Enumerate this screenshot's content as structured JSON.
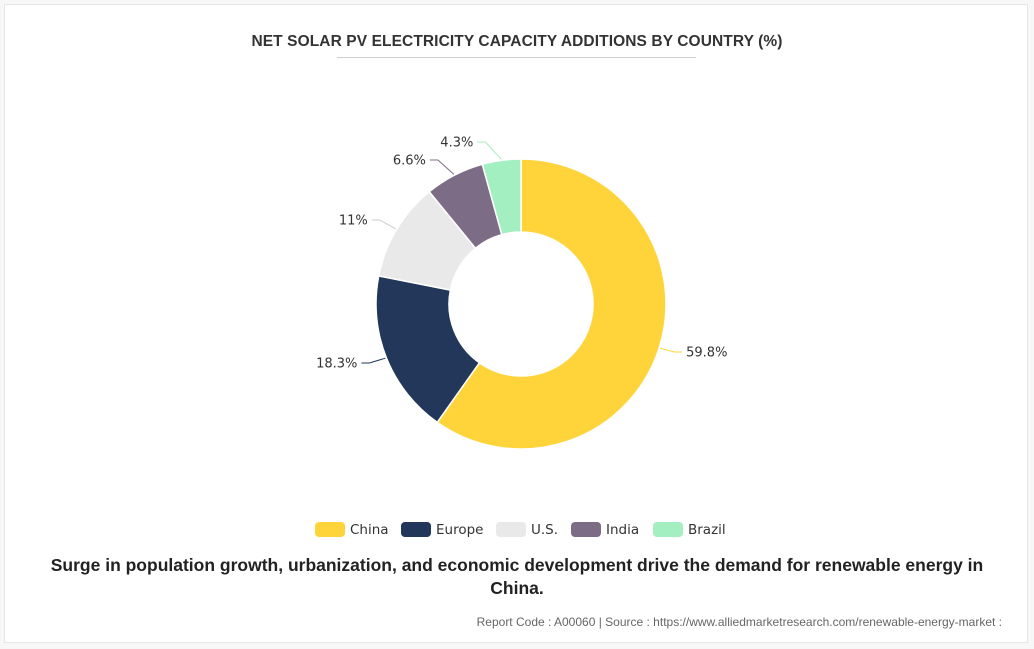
{
  "chart_data": {
    "type": "pie",
    "variant": "donut",
    "title": "NET SOLAR PV ELECTRICITY CAPACITY ADDITIONS BY COUNTRY (%)",
    "categories": [
      "China",
      "Europe",
      "U.S.",
      "India",
      "Brazil"
    ],
    "values": [
      59.8,
      18.3,
      11,
      6.6,
      4.3
    ],
    "labels": [
      "59.8%",
      "18.3%",
      "11%",
      "6.6%",
      "4.3%"
    ],
    "colors": [
      "#FFD43B",
      "#22375A",
      "#E9E9E9",
      "#7D6C85",
      "#A3EFC2"
    ],
    "legend_position": "bottom"
  },
  "caption": "Surge in population growth, urbanization, and economic development drive the demand for renewable energy in China.",
  "footer": "Report Code : A00060  |  Source : https://www.alliedmarketresearch.com/renewable-energy-market :"
}
